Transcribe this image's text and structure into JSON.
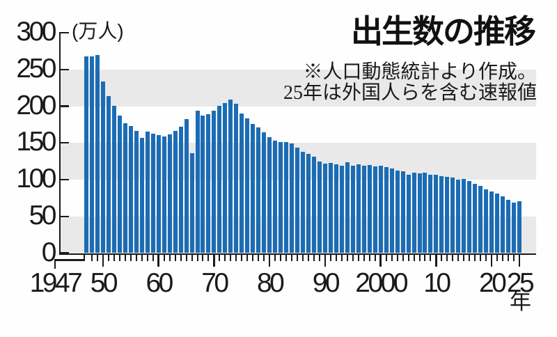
{
  "chart_data": {
    "type": "bar",
    "title": "出生数の推移",
    "annotation": [
      "※人口動態統計より作成。",
      "25年は外国人らを含む速報値"
    ],
    "series_name": "出生数",
    "y_unit_label": "(万人)",
    "x_unit_label": "年",
    "ylim": [
      0,
      300
    ],
    "y_ticks": [
      300,
      250,
      200,
      150,
      100,
      50,
      0
    ],
    "gray_bands": [
      [
        200,
        250
      ],
      [
        100,
        150
      ],
      [
        0,
        50
      ]
    ],
    "grid": false,
    "legend": null,
    "x_tick_labels": [
      {
        "year": 1947,
        "label": "1947",
        "leader": true
      },
      {
        "year": 1950,
        "label": "50"
      },
      {
        "year": 1960,
        "label": "60"
      },
      {
        "year": 1970,
        "label": "70"
      },
      {
        "year": 1980,
        "label": "80"
      },
      {
        "year": 1990,
        "label": "90"
      },
      {
        "year": 2000,
        "label": "2000"
      },
      {
        "year": 2010,
        "label": "10"
      },
      {
        "year": 2020,
        "label": "20"
      },
      {
        "year": 2025,
        "label": "25"
      }
    ],
    "years": [
      1947,
      1948,
      1949,
      1950,
      1951,
      1952,
      1953,
      1954,
      1955,
      1956,
      1957,
      1958,
      1959,
      1960,
      1961,
      1962,
      1963,
      1964,
      1965,
      1966,
      1967,
      1968,
      1969,
      1970,
      1971,
      1972,
      1973,
      1974,
      1975,
      1976,
      1977,
      1978,
      1979,
      1980,
      1981,
      1982,
      1983,
      1984,
      1985,
      1986,
      1987,
      1988,
      1989,
      1990,
      1991,
      1992,
      1993,
      1994,
      1995,
      1996,
      1997,
      1998,
      1999,
      2000,
      2001,
      2002,
      2003,
      2004,
      2005,
      2006,
      2007,
      2008,
      2009,
      2010,
      2011,
      2012,
      2013,
      2014,
      2015,
      2016,
      2017,
      2018,
      2019,
      2020,
      2021,
      2022,
      2023,
      2024,
      2025
    ],
    "values": [
      267.9,
      268.2,
      269.7,
      233.7,
      213.8,
      200.5,
      186.8,
      176.9,
      173.1,
      166.5,
      156.7,
      165.3,
      162.6,
      160.6,
      158.9,
      161.8,
      165.9,
      171.7,
      182.4,
      136.1,
      193.6,
      187.2,
      188.9,
      193.4,
      200.1,
      203.9,
      209.2,
      203.0,
      190.1,
      183.3,
      175.5,
      170.9,
      164.3,
      157.7,
      152.9,
      151.5,
      150.9,
      148.9,
      143.2,
      138.3,
      134.7,
      131.4,
      124.7,
      122.2,
      122.3,
      120.9,
      118.8,
      123.8,
      118.7,
      120.7,
      119.2,
      120.3,
      117.8,
      119.1,
      117.1,
      115.4,
      112.4,
      111.1,
      106.3,
      109.3,
      109.0,
      109.1,
      107.0,
      107.1,
      105.1,
      103.7,
      103.0,
      100.4,
      100.6,
      97.7,
      94.6,
      91.8,
      86.5,
      84.1,
      81.2,
      77.1,
      72.7,
      68.6,
      70.3
    ],
    "colors": {
      "bar": "#1b6cb5",
      "band": "#e9e9e9",
      "axis": "#1a1a1a",
      "text": "#1a1a1a"
    }
  }
}
